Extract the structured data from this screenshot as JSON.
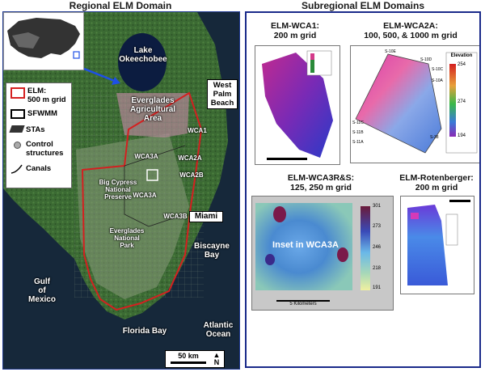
{
  "left_title": "Regional ELM Domain",
  "right_title": "Subregional ELM Domains",
  "legend": {
    "elm": "ELM:",
    "elm_grid": "500 m grid",
    "sfwmm": "SFWMM",
    "stas": "STAs",
    "control": "Control",
    "control2": "structures",
    "canals": "Canals"
  },
  "map_labels": {
    "lake": "Lake",
    "lake2": "Okeechobee",
    "west_palm": "West",
    "west_palm2": "Palm",
    "west_palm3": "Beach",
    "eaa": "Everglades",
    "eaa2": "Agricultural",
    "eaa3": "Area",
    "wca1": "WCA1",
    "wca2a": "WCA2A",
    "wca2b": "WCA2B",
    "wca3a_top": "WCA3A",
    "wca3a_bottom": "WCA3A",
    "wca3b": "WCA3B",
    "big_cypress": "Big Cypress",
    "big_cypress2": "National",
    "big_cypress3": "Preserve",
    "everglades_np": "Everglades",
    "everglades_np2": "National",
    "everglades_np3": "Park",
    "miami": "Miami",
    "biscayne": "Biscayne",
    "biscayne2": "Bay",
    "gulf": "Gulf",
    "gulf2": "of",
    "gulf3": "Mexico",
    "florida_bay": "Florida Bay",
    "atlantic": "Atlantic",
    "atlantic2": "Ocean",
    "scale": "50 km",
    "north": "N"
  },
  "subdomains": {
    "wca1_title": "ELM-WCA1:",
    "wca1_grid": "200 m grid",
    "wca2a_title": "ELM-WCA2A:",
    "wca2a_grid": "100, 500, & 1000 m grid",
    "wca2a_legend_title": "Elevation",
    "wca2a_legend_vals": [
      "254",
      "274",
      "194"
    ],
    "wca2a_stations": [
      "S-10E",
      "S-10D",
      "S-10C",
      "S-10A",
      "S-11C",
      "S-11B",
      "S-11A",
      "S-38"
    ],
    "wca3rs_title": "ELM-WCA3R&S:",
    "wca3rs_grid": "125, 250 m grid",
    "wca3rs_inset": "Inset in WCA3A",
    "wca3rs_scale": "5 Kilometers",
    "wca3rs_ticks": [
      "301",
      "273",
      "246",
      "218",
      "191"
    ],
    "rot_title": "ELM-Rotenberger:",
    "rot_grid": "200 m grid"
  },
  "colors": {
    "elm_boundary": "#d42020",
    "frame": "#1a2a8a",
    "lake": "#0c1c40",
    "ocean": "#16283a",
    "arrow": "#1e50e6"
  }
}
